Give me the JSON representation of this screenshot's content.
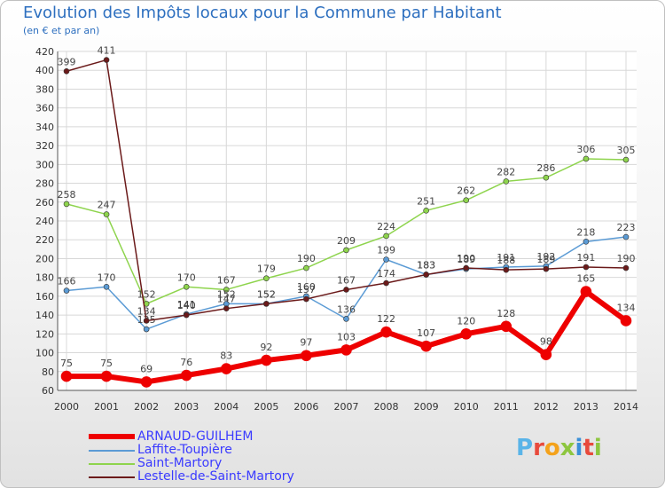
{
  "header": {
    "title": "Evolution des Impôts locaux pour la Commune par Habitant",
    "subtitle": "(en € et par an)"
  },
  "logo": {
    "letters": [
      "P",
      "r",
      "o",
      "x",
      "i",
      "t",
      "i"
    ],
    "colors": [
      "#5ab4e8",
      "#e84a3c",
      "#f4a21b",
      "#8dc63f",
      "#3a8fd8",
      "#e84a3c",
      "#8dc63f"
    ]
  },
  "chart_data": {
    "type": "line",
    "x": [
      "2000",
      "2001",
      "2002",
      "2003",
      "2004",
      "2005",
      "2006",
      "2007",
      "2008",
      "2009",
      "2010",
      "2011",
      "2012",
      "2013",
      "2014"
    ],
    "ylim": [
      60,
      420
    ],
    "yticks": [
      60,
      80,
      100,
      120,
      140,
      160,
      180,
      200,
      220,
      240,
      260,
      280,
      300,
      320,
      340,
      360,
      380,
      400,
      420
    ],
    "grid": true,
    "legend_position": "bottom-left",
    "series": [
      {
        "name": "ARNAUD-GUILHEM",
        "color": "#ee0000",
        "width": 6,
        "values": [
          75,
          75,
          69,
          76,
          83,
          92,
          97,
          103,
          122,
          107,
          120,
          128,
          98,
          165,
          134
        ]
      },
      {
        "name": "Laffite-Toupière",
        "color": "#5b9bd5",
        "width": 1.5,
        "values": [
          166,
          170,
          125,
          141,
          152,
          152,
          160,
          136,
          199,
          183,
          189,
          191,
          192,
          218,
          223
        ]
      },
      {
        "name": "Saint-Martory",
        "color": "#8ed44d",
        "width": 1.5,
        "values": [
          258,
          247,
          152,
          170,
          167,
          179,
          190,
          209,
          224,
          251,
          262,
          282,
          286,
          306,
          305
        ]
      },
      {
        "name": "Lestelle-de-Saint-Martory",
        "color": "#6b1a1a",
        "width": 1.5,
        "values": [
          399,
          411,
          134,
          140,
          147,
          152,
          157,
          167,
          174,
          183,
          190,
          188,
          189,
          191,
          190
        ]
      }
    ]
  }
}
